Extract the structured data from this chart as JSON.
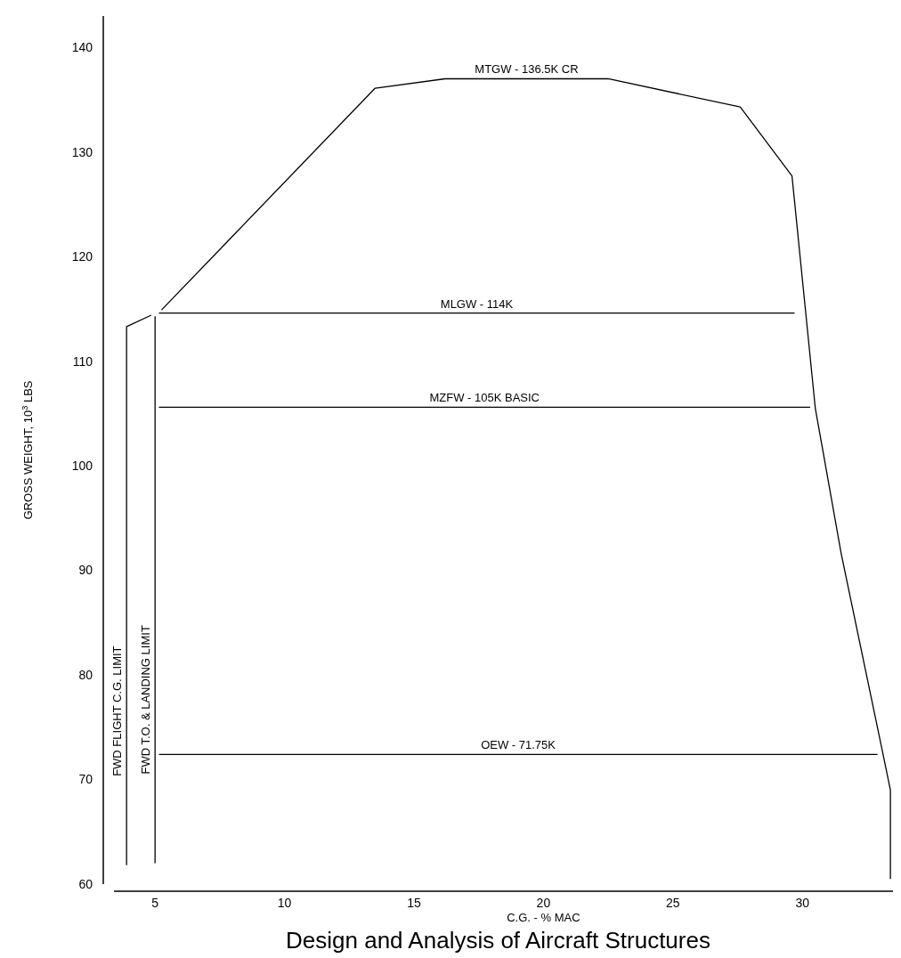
{
  "chart_data": {
    "type": "line",
    "xlabel": "C.G. - % MAC",
    "ylabel": "GROSS WEIGHT, 10$^{3}$ LBS",
    "xlim": [
      3,
      33.5
    ],
    "ylim": [
      60,
      143
    ],
    "xticks": [
      5,
      10,
      15,
      20,
      25,
      30
    ],
    "yticks": [
      60,
      70,
      80,
      90,
      100,
      110,
      120,
      130,
      140
    ],
    "grid": false,
    "marker": "none",
    "line_style": "solid",
    "series": [
      {
        "name": "MTGW - 136.5K CR",
        "color": "#000000",
        "x": [
          5.25,
          13.5,
          16.2,
          22.5,
          27.6,
          29.6,
          30.5,
          31.5,
          33.1,
          33.4,
          33.4
        ],
        "values": [
          114.9,
          136.1,
          137,
          137,
          134.3,
          127.7,
          105.5,
          91.6,
          72.6,
          69,
          60.5
        ]
      },
      {
        "name": "MLGW - 114K",
        "color": "#000000",
        "x": [
          5.15,
          29.7
        ],
        "values": [
          114.6,
          114.6
        ]
      },
      {
        "name": "MZFW - 105K BASIC",
        "color": "#000000",
        "x": [
          5.15,
          30.3
        ],
        "values": [
          105.6,
          105.6
        ]
      },
      {
        "name": "OEW - 71.75K",
        "color": "#000000",
        "x": [
          5.15,
          32.9
        ],
        "values": [
          72.4,
          72.4
        ]
      },
      {
        "name": "FWD FLIGHT C.G. LIMIT",
        "color": "#000000",
        "x": [
          3.9,
          3.9,
          4.85
        ],
        "values": [
          61.8,
          113.3,
          114.4
        ]
      },
      {
        "name": "FWD T.O. & LANDING LIMIT",
        "color": "#000000",
        "x": [
          5,
          5
        ],
        "values": [
          62,
          114.3
        ]
      }
    ],
    "annotations": [
      "Design and Analysis of Aircraft Structures"
    ]
  }
}
